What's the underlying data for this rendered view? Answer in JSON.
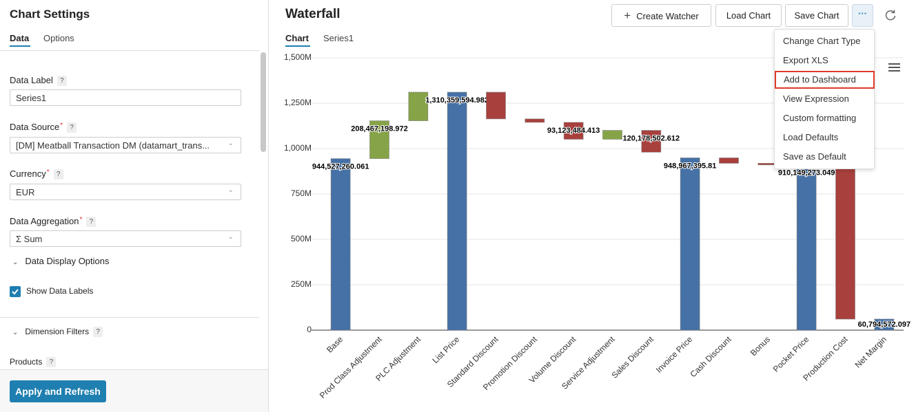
{
  "sidebar": {
    "title": "Chart Settings",
    "tabs": [
      "Data",
      "Options"
    ],
    "help_mark": "?",
    "required_mark": "*",
    "fields": [
      {
        "label": "Data Label",
        "value": "Series1"
      },
      {
        "label": "Data Source",
        "value": "[DM] Meatball Transaction DM (datamart_trans..."
      },
      {
        "label": "Currency",
        "value": "EUR"
      },
      {
        "label": "Data Aggregation",
        "value": "Σ Sum"
      }
    ],
    "display_section": "Data Display Options",
    "show_labels": "Show Data Labels",
    "filters_section": "Dimension Filters",
    "products": "Products",
    "apply_button": "Apply and Refresh"
  },
  "header": {
    "title": "Waterfall",
    "buttons": [
      "Create Watcher",
      "Load Chart",
      "Save Chart"
    ],
    "tabs": [
      "Chart",
      "Series1"
    ]
  },
  "menu": {
    "items": [
      "Change Chart Type",
      "Export XLS",
      "Add to Dashboard",
      "View Expression",
      "Custom formatting",
      "Load Defaults",
      "Save as Default"
    ],
    "highlighted": 2
  },
  "chart_data": {
    "type": "waterfall",
    "categories": [
      "Base",
      "Prod Class Adjustment",
      "PLC Adjustment",
      "List Price",
      "Standard Discount",
      "Promotion Discount",
      "Volume Discount",
      "Service Adjustment",
      "Sales Discount",
      "Invoice Price",
      "Cash Discount",
      "Bonus",
      "Pocket Price",
      "Production Cost",
      "Net Margin"
    ],
    "values": [
      944527260.061,
      208467198.972,
      157365135.949,
      1310359594.982,
      -147000000,
      -19000000,
      -93123484.413,
      49000000,
      -120178502.612,
      948967395.81,
      -30000000,
      -8800000,
      910149273.049,
      -849354700.952,
      60794572.097
    ],
    "value_labels": [
      "944,527,260.061",
      "208,467,198.972",
      null,
      "1,310,359,594.982",
      null,
      null,
      "93,123,484.413",
      null,
      "120,178,502.612",
      "948,967,395.81",
      null,
      null,
      "910,149,273.049",
      null,
      "60,794,572.097"
    ],
    "is_sum": [
      true,
      false,
      false,
      true,
      false,
      false,
      false,
      false,
      false,
      true,
      false,
      false,
      true,
      false,
      true
    ],
    "sum_color": "#4571a6",
    "up_color": "#86a447",
    "down_color": "#a8403e",
    "ylim": [
      0,
      1500000000
    ],
    "yticks": [
      0,
      {
        "value": 250000000,
        "label": "250M"
      },
      {
        "value": 500000000,
        "label": "500M"
      },
      {
        "value": 750000000,
        "label": "750M"
      },
      {
        "value": 1000000000,
        "label": "1,000M"
      },
      {
        "value": 1250000000,
        "label": "1,250M"
      },
      {
        "value": 1500000000,
        "label": "1,500M"
      }
    ],
    "grid": true
  }
}
